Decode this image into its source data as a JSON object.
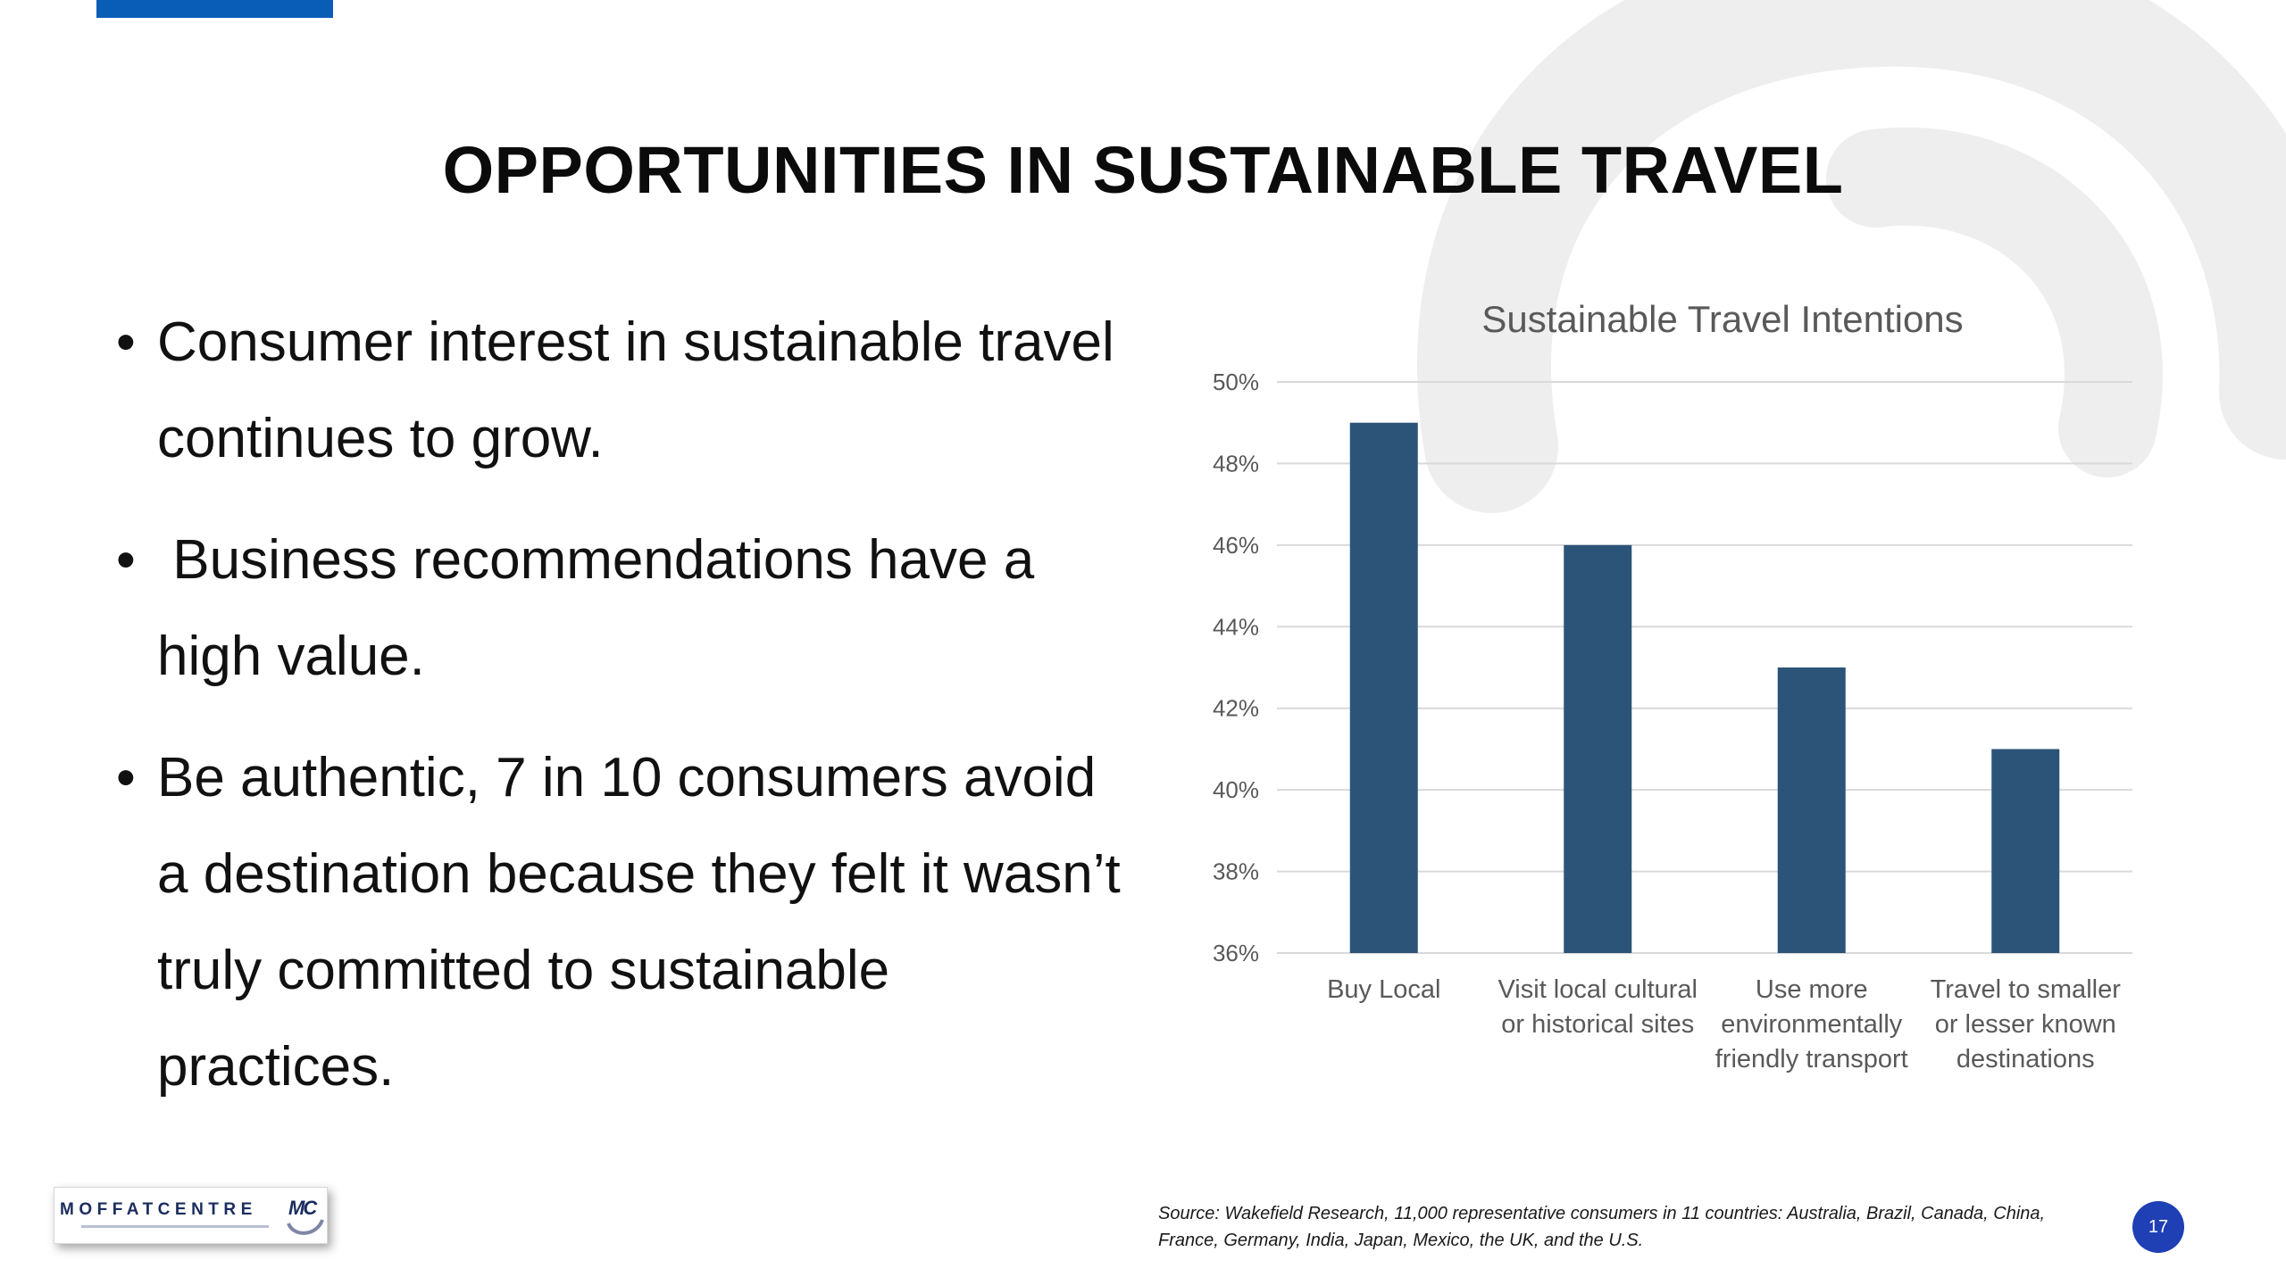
{
  "slide": {
    "title": "OPPORTUNITIES IN SUSTAINABLE TRAVEL",
    "accent_color": "#0a5db7",
    "watermark_color": "#eeeeee",
    "bullet_glyph": "•",
    "bullets": [
      "Consumer interest in sustainable travel continues to grow.",
      " Business recommendations have a high value.",
      "Be authentic, 7 in 10 consumers avoid a destination because they felt it wasn’t truly committed to sustainable practices."
    ],
    "source": "Source: Wakefield Research, 11,000 representative consumers in 11 countries: Australia, Brazil, Canada, China, France, Germany, India, Japan, Mexico, the UK, and the U.S.",
    "page_number": "17",
    "page_badge_color": "#1f3fb5",
    "logo": {
      "text": "MOFFATCENTRE",
      "mark": "MC",
      "icon": "moffat-centre-logo-icon"
    }
  },
  "chart_data": {
    "type": "bar",
    "title": "Sustainable Travel Intentions",
    "xlabel": "",
    "ylabel": "",
    "categories": [
      [
        "Buy Local"
      ],
      [
        "Visit local cultural",
        "or historical sites"
      ],
      [
        "Use more",
        "environmentally",
        "friendly transport"
      ],
      [
        "Travel to smaller",
        "or lesser known",
        "destinations"
      ]
    ],
    "values": [
      0.49,
      0.46,
      0.43,
      0.41
    ],
    "ylim": [
      0.36,
      0.5
    ],
    "yticks": [
      "50%",
      "48%",
      "46%",
      "44%",
      "42%",
      "40%",
      "38%",
      "36%"
    ],
    "grid": true,
    "legend": "none",
    "bar_color": "#2b5478",
    "grid_color": "#d9d9d9",
    "text_color": "#595959"
  }
}
